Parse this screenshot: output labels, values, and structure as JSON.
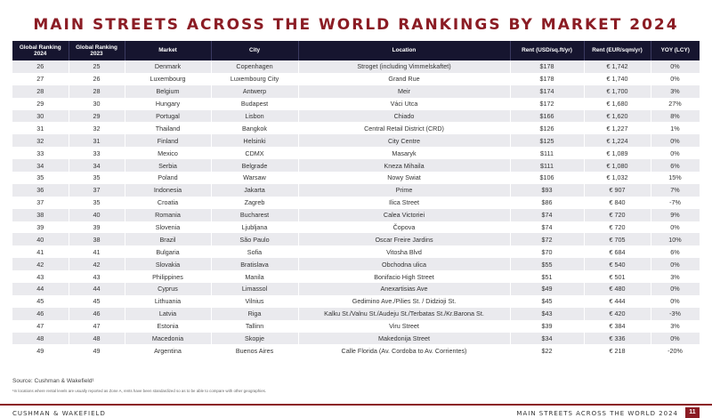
{
  "title": "MAIN STREETS ACROSS THE WORLD RANKINGS BY MARKET 2024",
  "columns": [
    "Global Ranking 2024",
    "Global Ranking 2023",
    "Market",
    "City",
    "Location",
    "Rent (USD/sq.ft/yr)",
    "Rent (EUR/sqm/yr)",
    "YOY (LCY)"
  ],
  "rows": [
    [
      "26",
      "25",
      "Denmark",
      "Copenhagen",
      "Stroget (including Vimmelskaftet)",
      "$178",
      "€ 1,742",
      "0%"
    ],
    [
      "27",
      "26",
      "Luxembourg",
      "Luxembourg City",
      "Grand Rue",
      "$178",
      "€ 1,740",
      "0%"
    ],
    [
      "28",
      "28",
      "Belgium",
      "Antwerp",
      "Meir",
      "$174",
      "€ 1,700",
      "3%"
    ],
    [
      "29",
      "30",
      "Hungary",
      "Budapest",
      "Váci Utca",
      "$172",
      "€ 1,680",
      "27%"
    ],
    [
      "30",
      "29",
      "Portugal",
      "Lisbon",
      "Chiado",
      "$166",
      "€ 1,620",
      "8%"
    ],
    [
      "31",
      "32",
      "Thailand",
      "Bangkok",
      "Central Retail District (CRD)",
      "$126",
      "€ 1,227",
      "1%"
    ],
    [
      "32",
      "31",
      "Finland",
      "Helsinki",
      "City Centre",
      "$125",
      "€ 1,224",
      "0%"
    ],
    [
      "33",
      "33",
      "Mexico",
      "CDMX",
      "Masaryk",
      "$111",
      "€ 1,089",
      "0%"
    ],
    [
      "34",
      "34",
      "Serbia",
      "Belgrade",
      "Kneza Mihaila",
      "$111",
      "€ 1,080",
      "6%"
    ],
    [
      "35",
      "35",
      "Poland",
      "Warsaw",
      "Nowy Swiat",
      "$106",
      "€ 1,032",
      "15%"
    ],
    [
      "36",
      "37",
      "Indonesia",
      "Jakarta",
      "Prime",
      "$93",
      "€ 907",
      "7%"
    ],
    [
      "37",
      "35",
      "Croatia",
      "Zagreb",
      "Ilica Street",
      "$86",
      "€ 840",
      "-7%"
    ],
    [
      "38",
      "40",
      "Romania",
      "Bucharest",
      "Calea Victoriei",
      "$74",
      "€ 720",
      "9%"
    ],
    [
      "39",
      "39",
      "Slovenia",
      "Ljubljana",
      "Čopova",
      "$74",
      "€ 720",
      "0%"
    ],
    [
      "40",
      "38",
      "Brazil",
      "São Paulo",
      "Oscar Freire Jardins",
      "$72",
      "€ 705",
      "10%"
    ],
    [
      "41",
      "41",
      "Bulgaria",
      "Sofia",
      "Vitosha Blvd",
      "$70",
      "€ 684",
      "6%"
    ],
    [
      "42",
      "42",
      "Slovakia",
      "Bratislava",
      "Obchodna ulica",
      "$55",
      "€ 540",
      "0%"
    ],
    [
      "43",
      "43",
      "Philippines",
      "Manila",
      "Bonifacio High Street",
      "$51",
      "€ 501",
      "3%"
    ],
    [
      "44",
      "44",
      "Cyprus",
      "Limassol",
      "Anexartisias Ave",
      "$49",
      "€ 480",
      "0%"
    ],
    [
      "45",
      "45",
      "Lithuania",
      "Vilnius",
      "Gedimino Ave./Pilies St. / Didzioji St.",
      "$45",
      "€ 444",
      "0%"
    ],
    [
      "46",
      "46",
      "Latvia",
      "Riga",
      "Kalku St./Valnu St./Audeju St./Terbatas St./Kr.Barona St.",
      "$43",
      "€ 420",
      "-3%"
    ],
    [
      "47",
      "47",
      "Estonia",
      "Tallinn",
      "Viru Street",
      "$39",
      "€ 384",
      "3%"
    ],
    [
      "48",
      "48",
      "Macedonia",
      "Skopje",
      "Makedonija Street",
      "$34",
      "€ 336",
      "0%"
    ],
    [
      "49",
      "49",
      "Argentina",
      "Buenos Aires",
      "Calle Florida (Av. Cordoba to Av. Corrientes)",
      "$22",
      "€ 218",
      "-20%"
    ]
  ],
  "source": "Source: Cushman & Wakefield¹",
  "footnote": "¹In locations where rental levels are usually reported as Zone A, rents have been standardized so as to be able to compare with other geographies.",
  "footer": {
    "brand": "CUSHMAN & WAKEFIELD",
    "title": "MAIN STREETS ACROSS THE WORLD 2024",
    "page": "11"
  },
  "colors": {
    "accent": "#8b1c24",
    "header_bg": "#16152f",
    "row_alt": "#eaeaee"
  }
}
